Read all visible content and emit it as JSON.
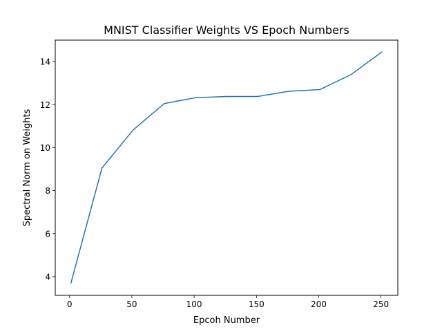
{
  "chart_data": {
    "type": "line",
    "title": "MNIST Classifier Weights VS Epoch Numbers",
    "xlabel": "Epcoh Number",
    "ylabel": "Spectral Norm on Weights",
    "xlim": [
      -11.5,
      263.5
    ],
    "ylim": [
      3.13,
      15.0
    ],
    "xticks": [
      0,
      50,
      100,
      150,
      200,
      250
    ],
    "yticks": [
      4,
      6,
      8,
      10,
      12,
      14
    ],
    "grid": false,
    "series": [
      {
        "color": "#1f77b4",
        "x": [
          1,
          26,
          51,
          76,
          101,
          126,
          151,
          176,
          201,
          226,
          251
        ],
        "y": [
          3.68,
          9.05,
          10.82,
          12.05,
          12.32,
          12.38,
          12.38,
          12.62,
          12.7,
          13.4,
          14.46
        ]
      }
    ]
  }
}
